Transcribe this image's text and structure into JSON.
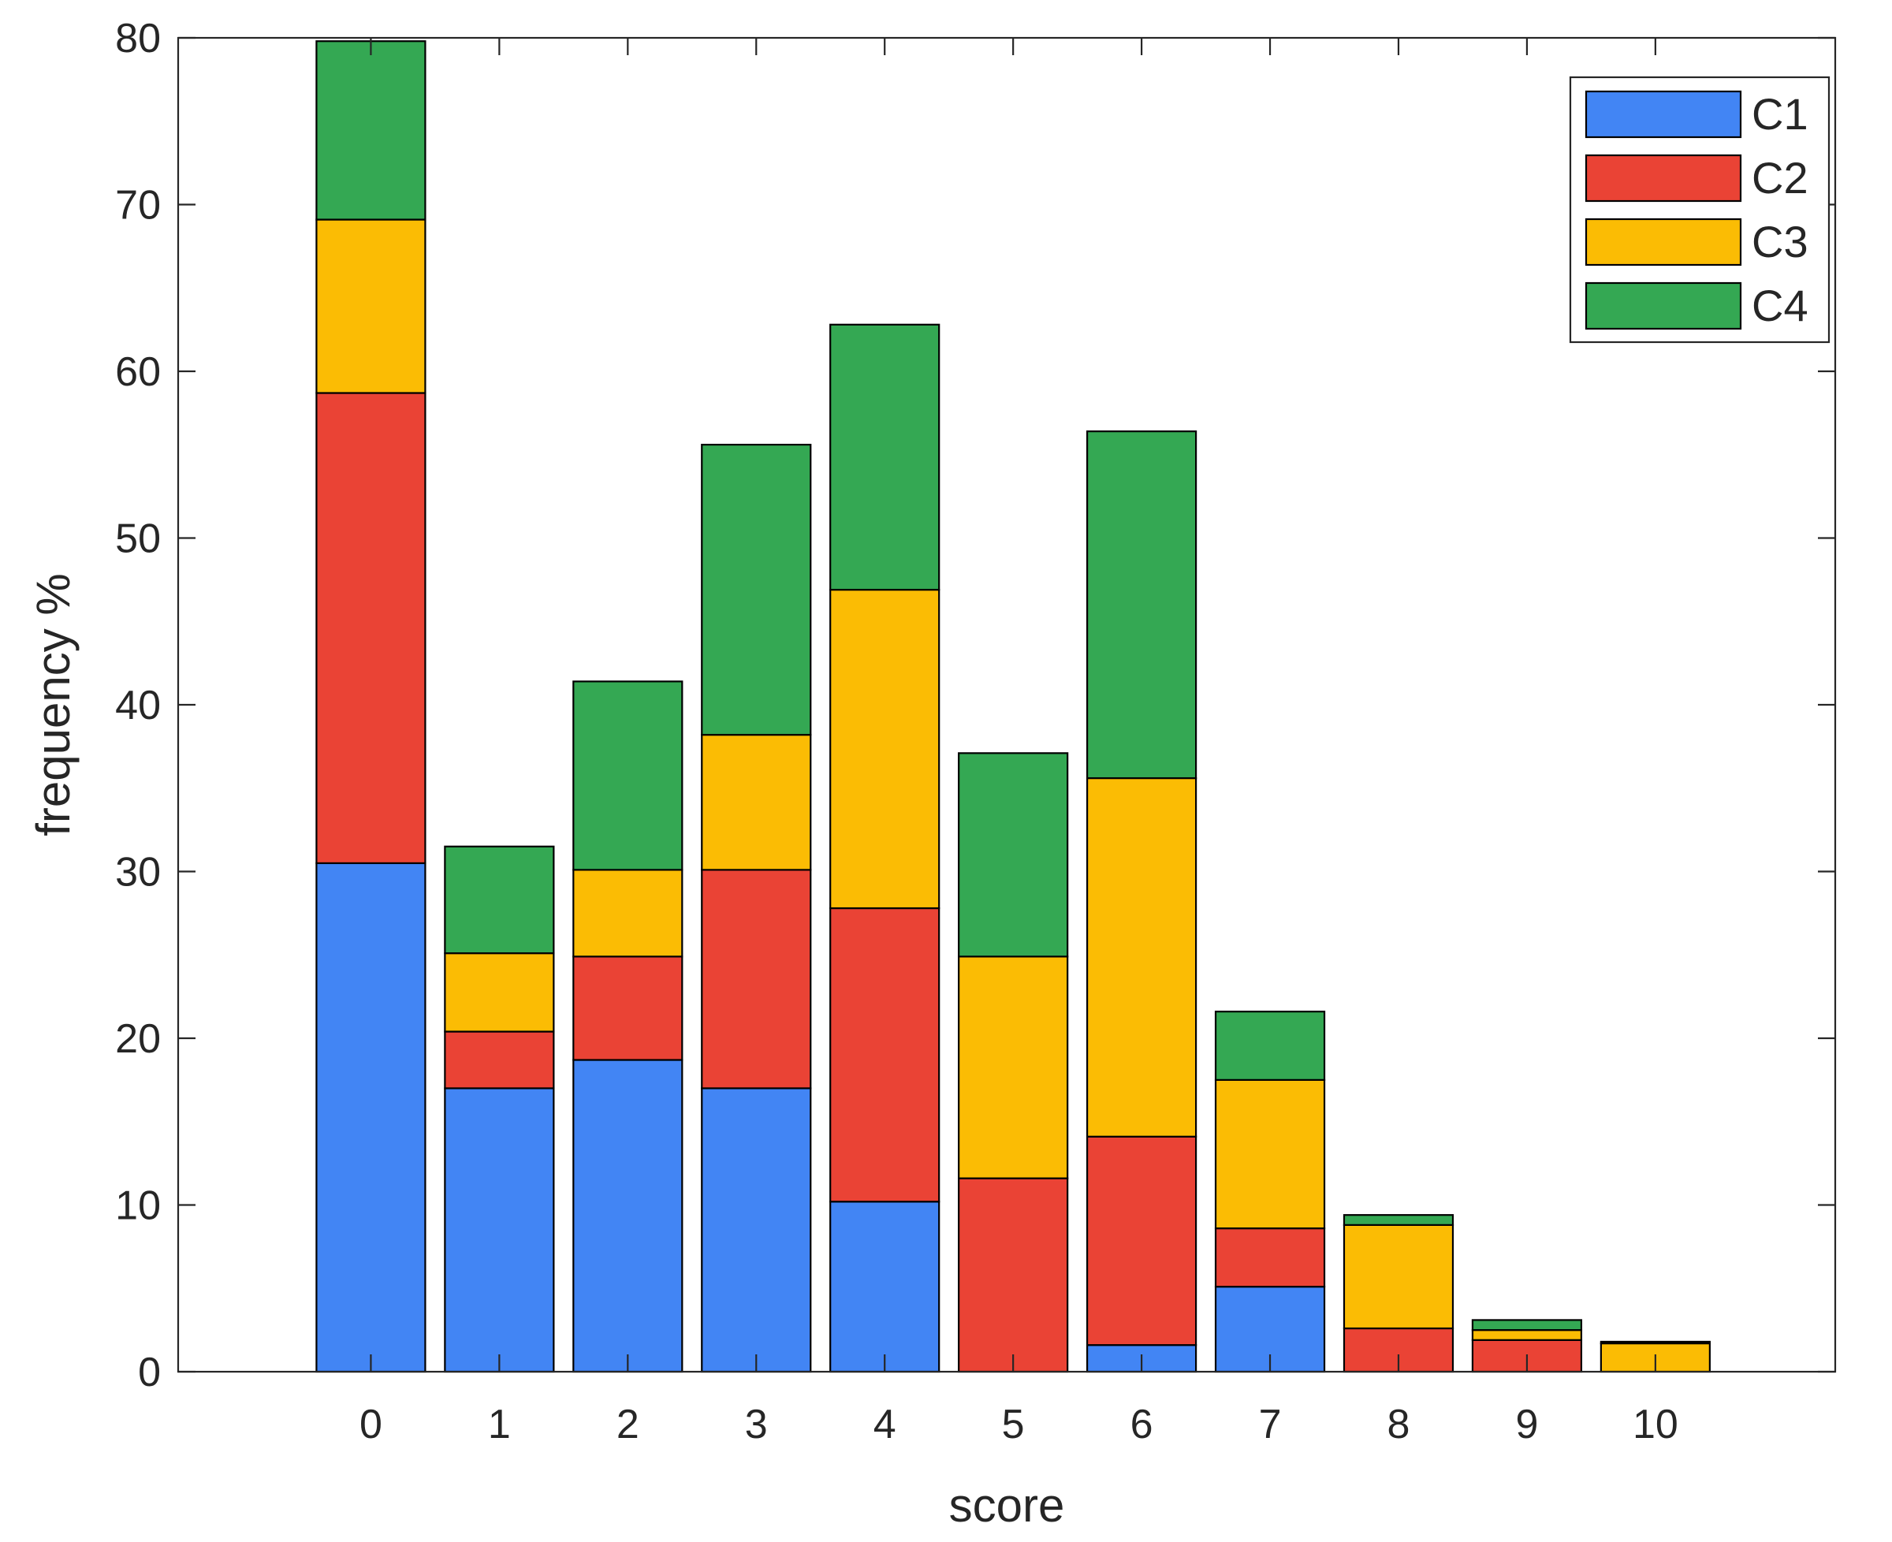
{
  "chart_data": {
    "type": "bar",
    "stacked": true,
    "title": "",
    "xlabel": "score",
    "ylabel": "frequency %",
    "ylim": [
      0,
      80
    ],
    "yticks": [
      0,
      10,
      20,
      30,
      40,
      50,
      60,
      70,
      80
    ],
    "categories": [
      "0",
      "1",
      "2",
      "3",
      "4",
      "5",
      "6",
      "7",
      "8",
      "9",
      "10"
    ],
    "series": [
      {
        "name": "C1",
        "color": "#4285F4",
        "values": [
          30.5,
          17.0,
          18.7,
          17.0,
          10.2,
          0,
          1.6,
          5.1,
          0,
          0,
          0
        ]
      },
      {
        "name": "C2",
        "color": "#EA4335",
        "values": [
          28.2,
          3.4,
          6.2,
          13.1,
          17.6,
          11.6,
          12.5,
          3.5,
          2.6,
          1.9,
          0
        ]
      },
      {
        "name": "C3",
        "color": "#FBBC04",
        "values": [
          10.4,
          4.7,
          5.2,
          8.1,
          19.1,
          13.3,
          21.5,
          8.9,
          6.2,
          0.6,
          1.7
        ]
      },
      {
        "name": "C4",
        "color": "#34A853",
        "values": [
          10.7,
          6.4,
          11.3,
          17.4,
          15.9,
          12.2,
          20.8,
          4.1,
          0.6,
          0.6,
          0.1
        ]
      }
    ],
    "legend_position": "top-right",
    "grid": false
  }
}
